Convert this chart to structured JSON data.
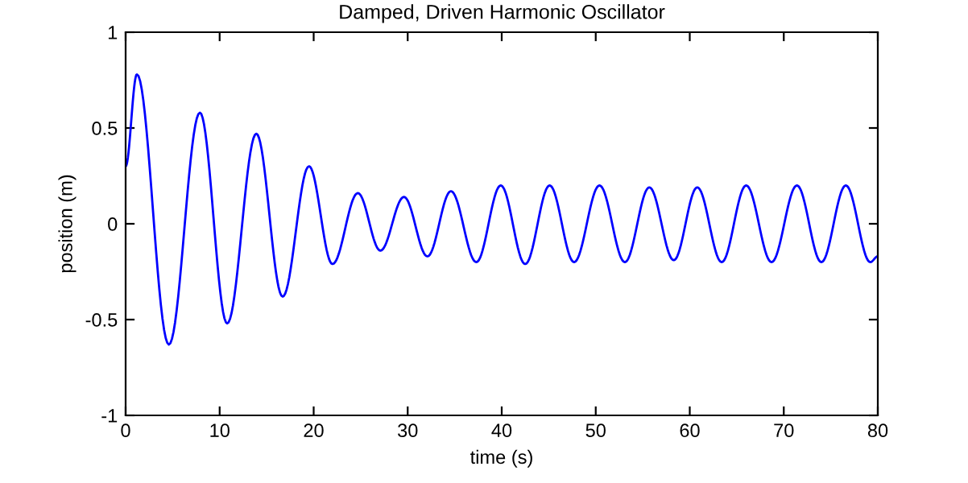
{
  "chart_data": {
    "type": "line",
    "title": "Damped, Driven Harmonic Oscillator",
    "xlabel": "time (s)",
    "ylabel": "position (m)",
    "series": [
      {
        "color": "#0000ff",
        "x": [
          0,
          1.2,
          4.6,
          7.9,
          10.8,
          13.9,
          16.7,
          19.5,
          22.0,
          24.7,
          27.1,
          29.6,
          32.1,
          34.6,
          37.3,
          39.9,
          42.5,
          45.1,
          47.7,
          50.4,
          53.1,
          55.7,
          58.3,
          60.8,
          63.4,
          66.0,
          68.7,
          71.4,
          74.0,
          76.6,
          79.2,
          80
        ],
        "values": [
          0.3,
          0.78,
          -0.63,
          0.58,
          -0.52,
          0.47,
          -0.38,
          0.3,
          -0.21,
          0.16,
          -0.14,
          0.14,
          -0.17,
          0.17,
          -0.2,
          0.2,
          -0.21,
          0.2,
          -0.2,
          0.2,
          -0.2,
          0.19,
          -0.19,
          0.19,
          -0.2,
          0.2,
          -0.2,
          0.2,
          -0.2,
          0.2,
          -0.2,
          -0.17
        ]
      }
    ],
    "xlim": [
      0,
      80
    ],
    "ylim": [
      -1,
      1
    ],
    "xticks": [
      0,
      10,
      20,
      30,
      40,
      50,
      60,
      70,
      80
    ],
    "yticks": [
      -1,
      -0.5,
      0,
      0.5,
      1
    ],
    "grid": false,
    "legend": false,
    "marker": "none",
    "line_style": "solid"
  }
}
